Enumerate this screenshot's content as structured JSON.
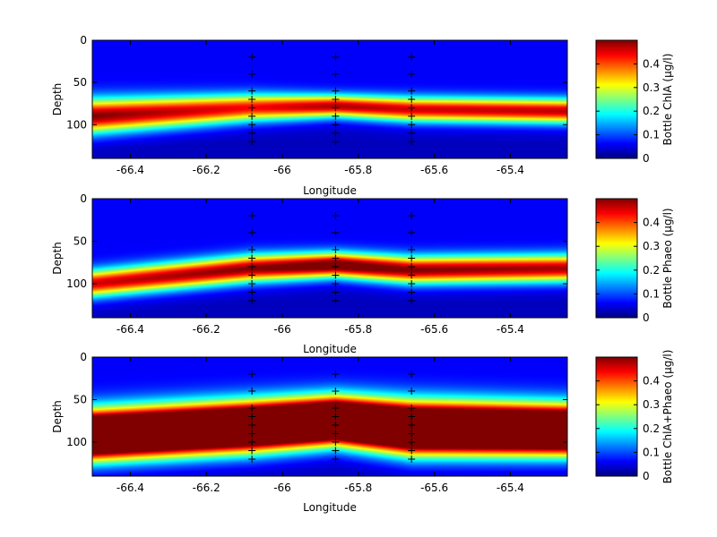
{
  "chart_data": [
    {
      "type": "heatmap",
      "colormap": "jet",
      "xlabel": "Longitude",
      "ylabel": "Depth",
      "xlim": [
        -66.5,
        -65.25
      ],
      "ylim": [
        0,
        140
      ],
      "y_reversed": true,
      "xticks": [
        -66.4,
        -66.2,
        -66,
        -65.8,
        -65.6,
        -65.4
      ],
      "yticks": [
        0,
        50,
        100
      ],
      "clim": [
        0,
        0.5
      ],
      "colorbar_ticks": [
        0,
        0.1,
        0.2,
        0.3,
        0.4
      ],
      "colorbar_label": "Bottle ChlA (μg/l)",
      "stations": [
        -66.08,
        -65.86,
        -65.66
      ],
      "sample_depths": [
        20,
        40,
        60,
        70,
        80,
        90,
        100,
        110,
        120
      ],
      "layers": [
        {
          "lon": -66.5,
          "depth": 90,
          "peak": 0.5,
          "width": 14
        },
        {
          "lon": -66.08,
          "depth": 80,
          "peak": 0.44,
          "width": 11
        },
        {
          "lon": -65.86,
          "depth": 78,
          "peak": 0.48,
          "width": 9
        },
        {
          "lon": -65.66,
          "depth": 82,
          "peak": 0.46,
          "width": 10
        },
        {
          "lon": -65.25,
          "depth": 84,
          "peak": 0.47,
          "width": 10
        }
      ]
    },
    {
      "type": "heatmap",
      "colormap": "jet",
      "xlabel": "Longitude",
      "ylabel": "Depth",
      "xlim": [
        -66.5,
        -65.25
      ],
      "ylim": [
        0,
        140
      ],
      "y_reversed": true,
      "xticks": [
        -66.4,
        -66.2,
        -66,
        -65.8,
        -65.6,
        -65.4
      ],
      "yticks": [
        0,
        50,
        100
      ],
      "clim": [
        0,
        0.5
      ],
      "colorbar_ticks": [
        0,
        0.1,
        0.2,
        0.3,
        0.4
      ],
      "colorbar_label": "Bottle Phaeo (μg/l)",
      "stations": [
        -66.08,
        -65.86,
        -65.66
      ],
      "sample_depths": [
        20,
        40,
        60,
        70,
        80,
        90,
        100,
        110,
        120
      ],
      "layers": [
        {
          "lon": -66.5,
          "depth": 100,
          "peak": 0.46,
          "width": 11
        },
        {
          "lon": -66.08,
          "depth": 82,
          "peak": 0.5,
          "width": 11
        },
        {
          "lon": -65.86,
          "depth": 78,
          "peak": 0.55,
          "width": 10
        },
        {
          "lon": -65.66,
          "depth": 84,
          "peak": 0.5,
          "width": 11
        },
        {
          "lon": -65.25,
          "depth": 82,
          "peak": 0.48,
          "width": 11
        }
      ]
    },
    {
      "type": "heatmap",
      "colormap": "jet",
      "xlabel": "Longitude",
      "ylabel": "Depth",
      "xlim": [
        -66.5,
        -65.25
      ],
      "ylim": [
        0,
        140
      ],
      "y_reversed": true,
      "xticks": [
        -66.4,
        -66.2,
        -66,
        -65.8,
        -65.6,
        -65.4
      ],
      "yticks": [
        0,
        50,
        100
      ],
      "clim": [
        0,
        0.5
      ],
      "colorbar_ticks": [
        0,
        0.1,
        0.2,
        0.3,
        0.4
      ],
      "colorbar_label": "Bottle ChlA+Phaeo (μg/l)",
      "stations": [
        -66.08,
        -65.86,
        -65.66
      ],
      "sample_depths": [
        20,
        40,
        60,
        70,
        80,
        90,
        100,
        110,
        120
      ],
      "layers": [
        {
          "lon": -66.5,
          "depth": 92,
          "peak": 0.95,
          "width": 19
        },
        {
          "lon": -66.08,
          "depth": 82,
          "peak": 0.95,
          "width": 19
        },
        {
          "lon": -65.86,
          "depth": 75,
          "peak": 1.0,
          "width": 18
        },
        {
          "lon": -65.66,
          "depth": 84,
          "peak": 0.95,
          "width": 20
        },
        {
          "lon": -65.25,
          "depth": 86,
          "peak": 0.95,
          "width": 19
        }
      ]
    }
  ]
}
